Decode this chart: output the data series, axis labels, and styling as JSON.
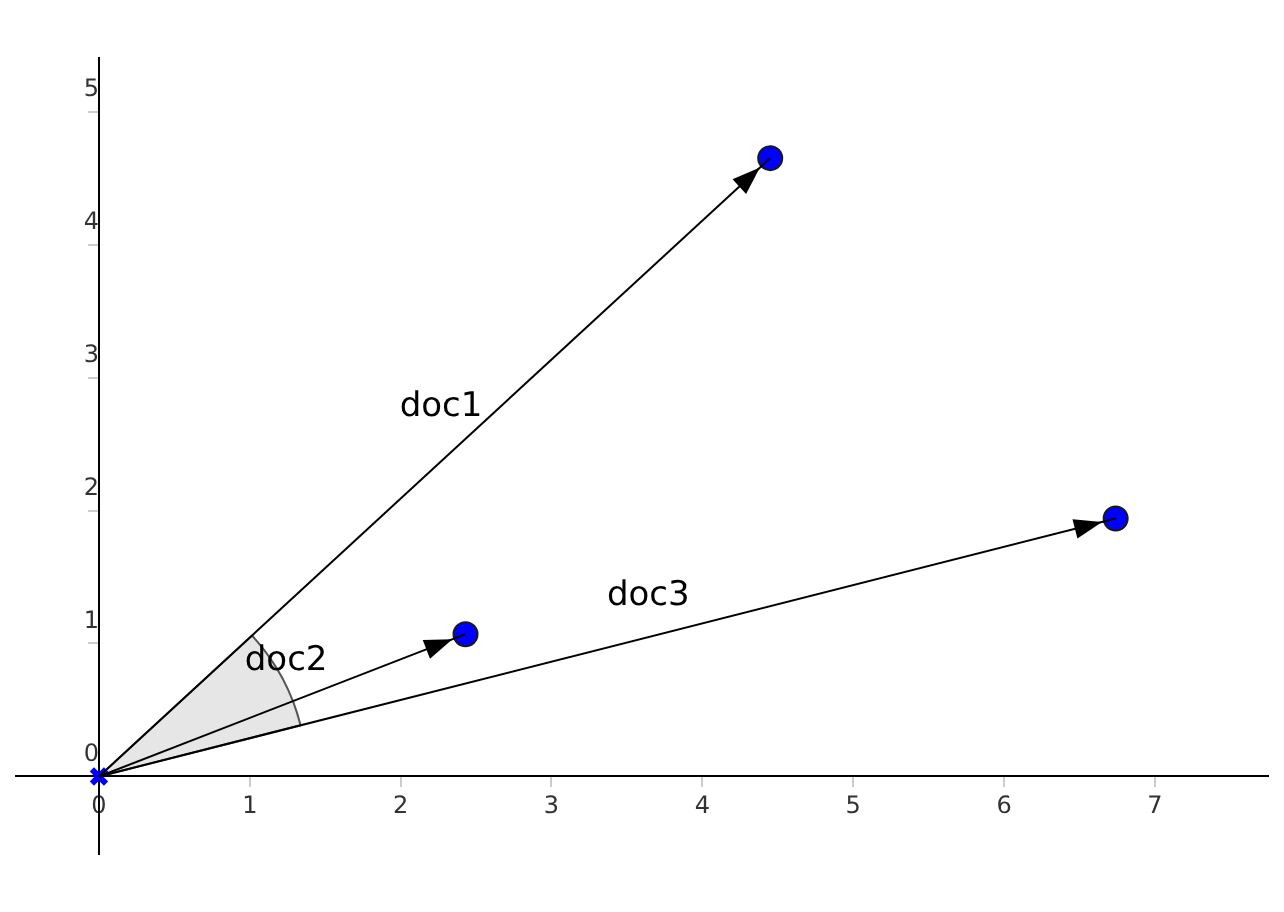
{
  "chart_data": {
    "type": "line",
    "xlim": [
      -0.55,
      7.75
    ],
    "ylim": [
      -0.58,
      5.4
    ],
    "xticks": [
      0,
      1,
      2,
      3,
      4,
      5,
      6,
      7
    ],
    "yticks": [
      0,
      1,
      2,
      3,
      4,
      5
    ],
    "grid": false,
    "legend": false,
    "series": [
      {
        "name": "doc1",
        "color": "#000000",
        "x": [
          0,
          4.45
        ],
        "values": [
          0,
          4.65
        ],
        "marker": "none"
      },
      {
        "name": "doc2",
        "color": "#000000",
        "x": [
          0,
          2.43
        ],
        "values": [
          0,
          1.07
        ],
        "marker": "none"
      },
      {
        "name": "doc3",
        "color": "#000000",
        "x": [
          0,
          6.74
        ],
        "values": [
          0,
          1.94
        ],
        "marker": "none"
      },
      {
        "type": "scatter",
        "color": "#0000ff",
        "x": [
          4.45,
          2.43,
          6.74
        ],
        "values": [
          4.65,
          1.07,
          1.94
        ],
        "marker": "circle"
      },
      {
        "type": "scatter",
        "color": "#0000ff",
        "x": [
          0
        ],
        "values": [
          0
        ],
        "marker": "cross"
      }
    ]
  }
}
